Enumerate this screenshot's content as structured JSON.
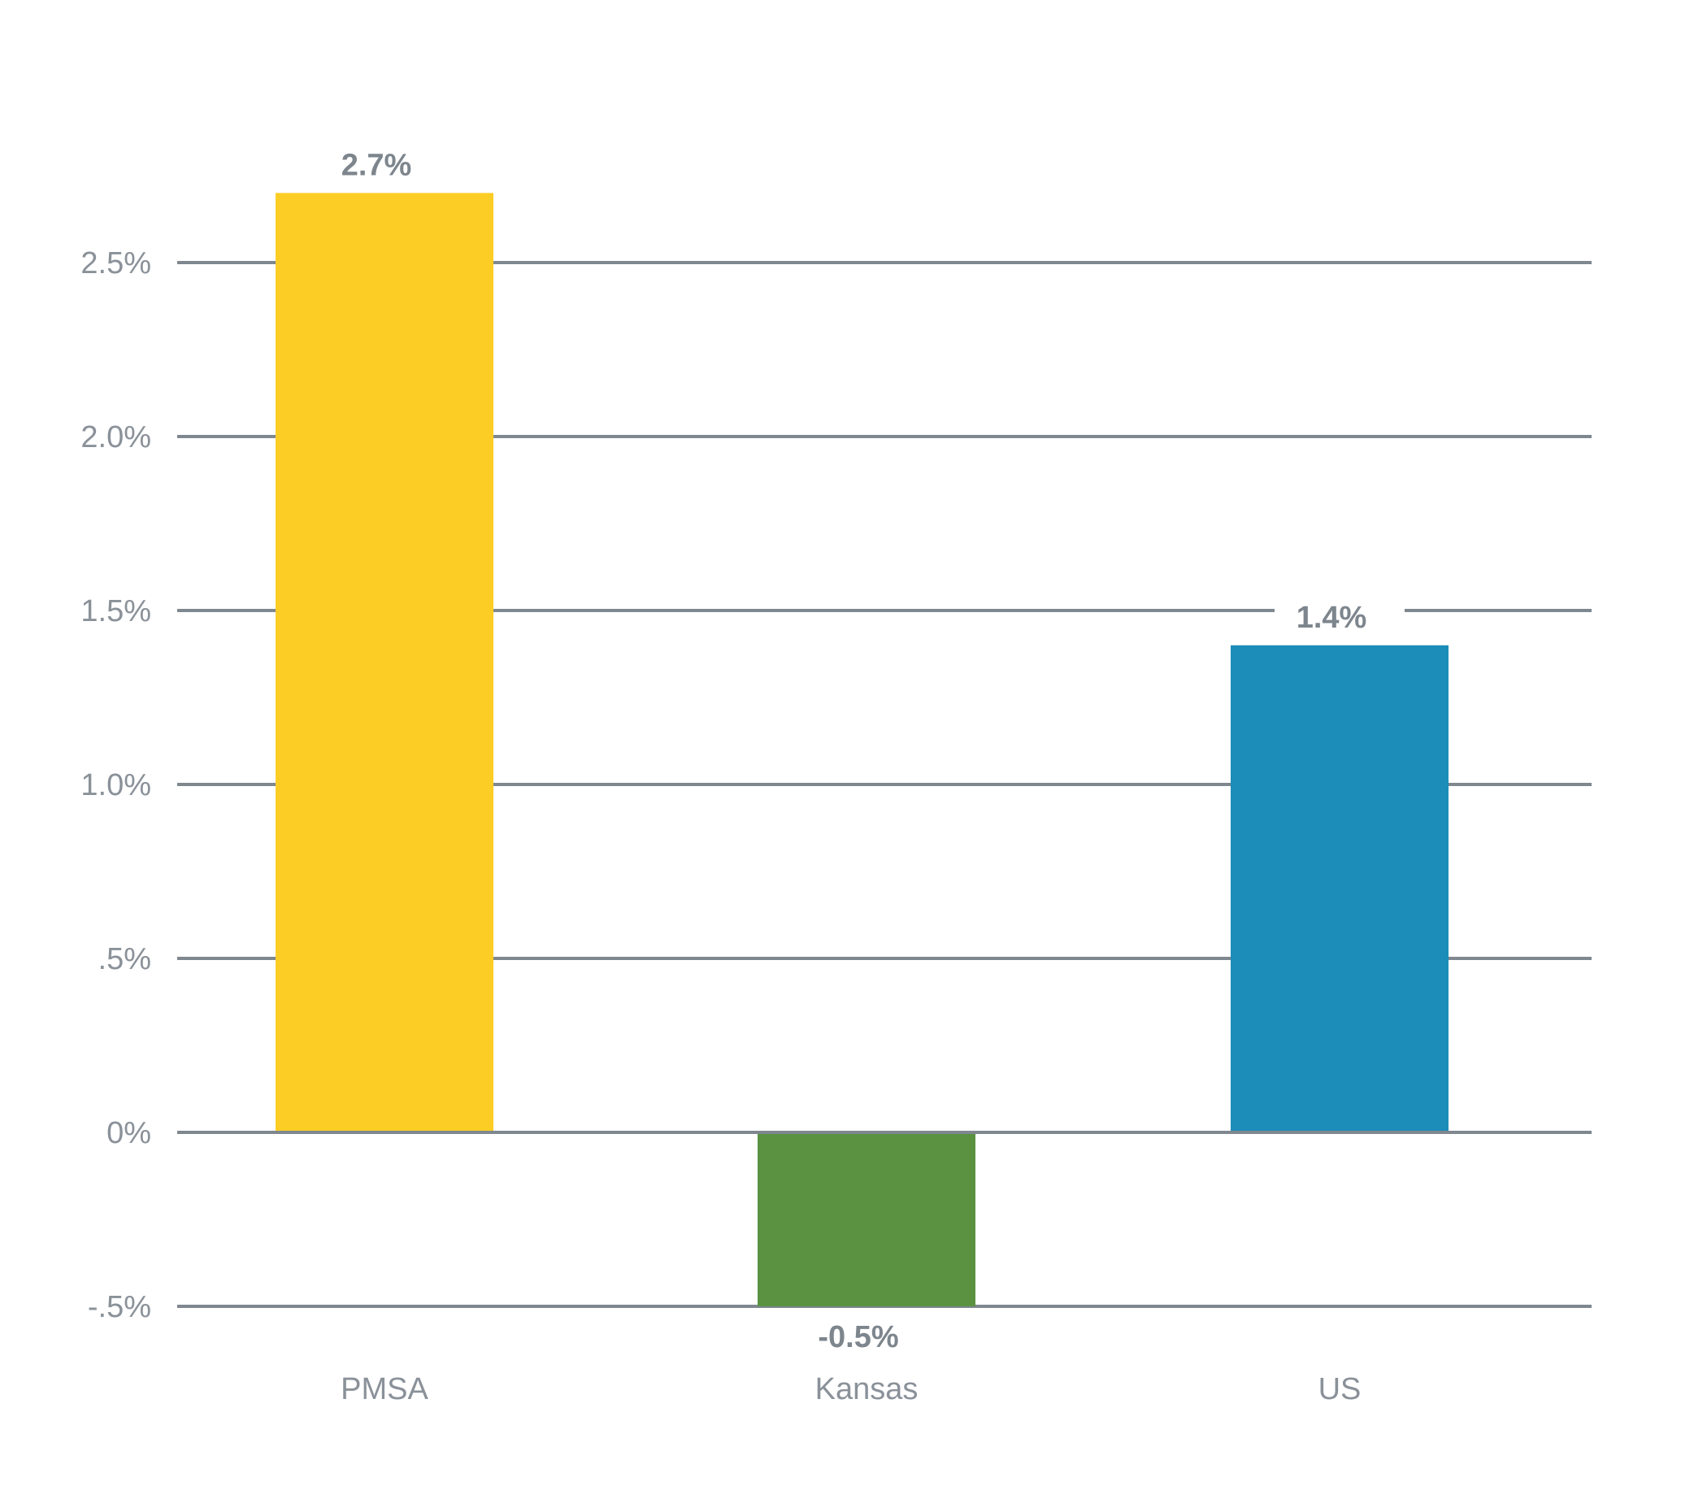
{
  "chart_data": {
    "type": "bar",
    "title": "",
    "xlabel": "",
    "ylabel": "",
    "categories": [
      "PMSA",
      "Kansas",
      "US"
    ],
    "values": [
      2.7,
      -0.5,
      1.4
    ],
    "data_labels": [
      "2.7%",
      "-0.5%",
      "1.4%"
    ],
    "ylim": [
      -0.5,
      2.7
    ],
    "y_ticks": [
      {
        "value": 2.5,
        "label": "2.5%"
      },
      {
        "value": 2.0,
        "label": "2.0%"
      },
      {
        "value": 1.5,
        "label": "1.5%"
      },
      {
        "value": 1.0,
        "label": "1.0%"
      },
      {
        "value": 0.5,
        "label": ".5%"
      },
      {
        "value": 0,
        "label": "0%"
      },
      {
        "value": -0.5,
        "label": "-.5%"
      }
    ],
    "grid": true,
    "legend": "none",
    "colors": [
      "#fccd24",
      "#5a9241",
      "#1c8db8"
    ]
  }
}
